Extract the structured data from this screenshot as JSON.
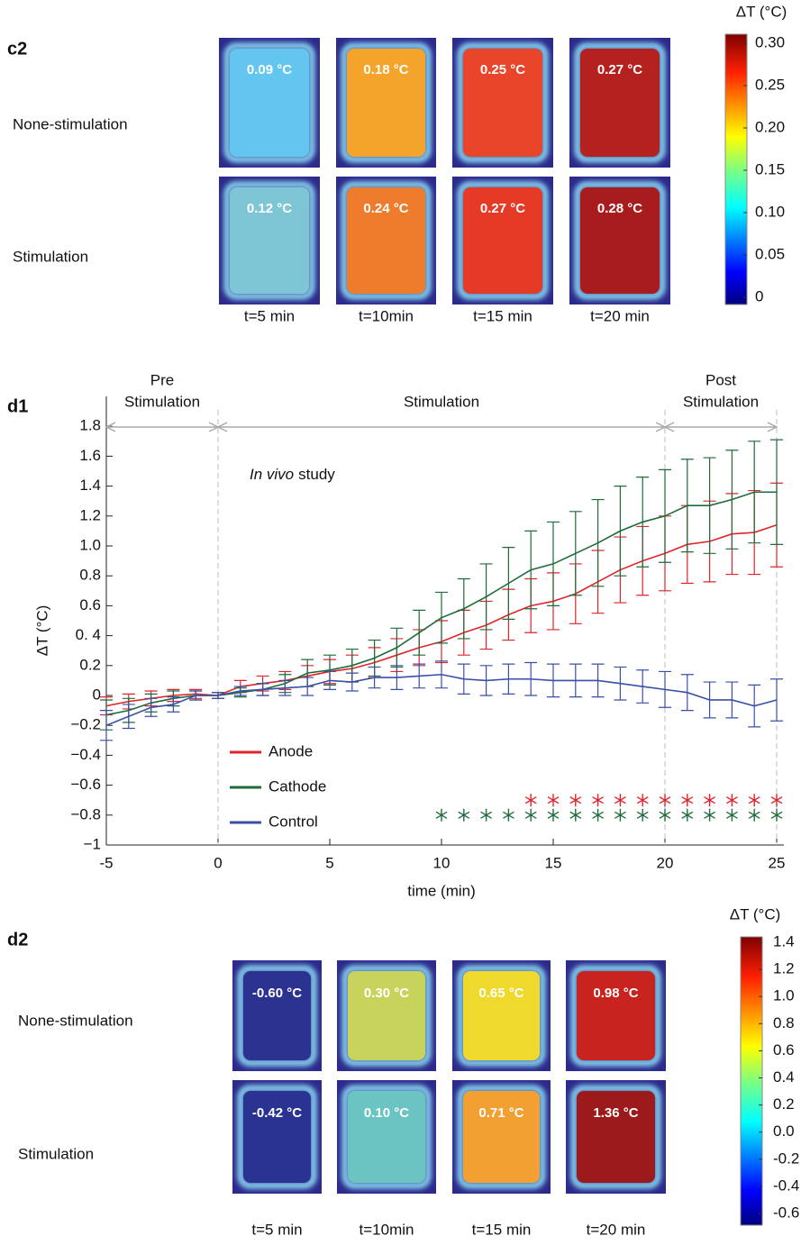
{
  "c2": {
    "panel": "c2",
    "rows": [
      "None-stimulation",
      "Stimulation"
    ],
    "columns": [
      "t=5 min",
      "t=10min",
      "t=15 min",
      "t=20 min"
    ],
    "cells": [
      [
        {
          "label": "0.09 °C",
          "color": "#62c6ee"
        },
        {
          "label": "0.18 °C",
          "color": "#f4a42a"
        },
        {
          "label": "0.25 °C",
          "color": "#e8452b"
        },
        {
          "label": "0.27 °C",
          "color": "#b4211f"
        }
      ],
      [
        {
          "label": "0.12 °C",
          "color": "#7ec6d6"
        },
        {
          "label": "0.24 °C",
          "color": "#ee7c2c"
        },
        {
          "label": "0.27 °C",
          "color": "#e53a26"
        },
        {
          "label": "0.28 °C",
          "color": "#a91c1d"
        }
      ]
    ],
    "colorbar": {
      "title": "ΔT (°C)",
      "ticks": [
        "0.30",
        "0.25",
        "0.20",
        "0.15",
        "0.10",
        "0.05",
        "0"
      ]
    }
  },
  "chart_data": {
    "type": "line",
    "panel": "d1",
    "x_label": "time (min)",
    "y_label": "ΔT (°C)",
    "annotation": [
      "In vivo",
      "study"
    ],
    "phases": [
      {
        "label": [
          "Pre",
          "Stimulation"
        ],
        "range": [
          -5,
          0
        ]
      },
      {
        "label": [
          "Stimulation"
        ],
        "range": [
          0,
          20
        ]
      },
      {
        "label": [
          "Post",
          "Stimulation"
        ],
        "range": [
          20,
          25
        ]
      }
    ],
    "x": [
      -5,
      -4,
      -3,
      -2,
      -1,
      0,
      1,
      2,
      3,
      4,
      5,
      6,
      7,
      8,
      9,
      10,
      11,
      12,
      13,
      14,
      15,
      16,
      17,
      18,
      19,
      20,
      21,
      22,
      23,
      24,
      25
    ],
    "series": [
      {
        "name": "Anode",
        "color": "#e0242b",
        "values": [
          -0.07,
          -0.04,
          -0.02,
          0.0,
          0.01,
          0.0,
          0.06,
          0.08,
          0.1,
          0.13,
          0.16,
          0.18,
          0.22,
          0.27,
          0.32,
          0.36,
          0.42,
          0.47,
          0.54,
          0.6,
          0.63,
          0.68,
          0.76,
          0.84,
          0.9,
          0.95,
          1.01,
          1.03,
          1.08,
          1.09,
          1.14
        ],
        "errors": [
          0.06,
          0.05,
          0.05,
          0.04,
          0.03,
          0.02,
          0.04,
          0.05,
          0.06,
          0.07,
          0.08,
          0.09,
          0.1,
          0.11,
          0.12,
          0.14,
          0.15,
          0.16,
          0.17,
          0.18,
          0.19,
          0.2,
          0.21,
          0.22,
          0.23,
          0.25,
          0.26,
          0.27,
          0.27,
          0.28,
          0.28
        ]
      },
      {
        "name": "Cathode",
        "color": "#1f6b3a",
        "values": [
          -0.13,
          -0.1,
          -0.05,
          -0.02,
          0.0,
          0.0,
          0.02,
          0.04,
          0.08,
          0.15,
          0.17,
          0.2,
          0.25,
          0.32,
          0.42,
          0.52,
          0.58,
          0.66,
          0.75,
          0.84,
          0.88,
          0.95,
          1.02,
          1.1,
          1.16,
          1.2,
          1.27,
          1.27,
          1.31,
          1.36,
          1.36
        ],
        "errors": [
          0.1,
          0.08,
          0.06,
          0.05,
          0.03,
          0.02,
          0.03,
          0.04,
          0.06,
          0.09,
          0.1,
          0.11,
          0.12,
          0.13,
          0.15,
          0.17,
          0.2,
          0.22,
          0.24,
          0.26,
          0.28,
          0.28,
          0.29,
          0.3,
          0.3,
          0.31,
          0.31,
          0.32,
          0.33,
          0.34,
          0.35
        ]
      },
      {
        "name": "Control",
        "color": "#3a4fa8",
        "values": [
          -0.2,
          -0.14,
          -0.08,
          -0.06,
          0.0,
          0.0,
          0.03,
          0.04,
          0.05,
          0.06,
          0.1,
          0.09,
          0.12,
          0.12,
          0.13,
          0.14,
          0.11,
          0.1,
          0.11,
          0.11,
          0.1,
          0.1,
          0.1,
          0.08,
          0.06,
          0.04,
          0.02,
          -0.03,
          -0.03,
          -0.07,
          -0.03
        ],
        "errors": [
          0.1,
          0.08,
          0.06,
          0.05,
          0.03,
          0.02,
          0.03,
          0.04,
          0.05,
          0.06,
          0.06,
          0.06,
          0.07,
          0.08,
          0.08,
          0.09,
          0.1,
          0.1,
          0.1,
          0.11,
          0.11,
          0.11,
          0.11,
          0.11,
          0.11,
          0.12,
          0.12,
          0.12,
          0.12,
          0.14,
          0.14
        ]
      }
    ],
    "significance": [
      {
        "color": "#e0242b",
        "x": [
          14,
          15,
          16,
          17,
          18,
          19,
          20,
          21,
          22,
          23,
          24,
          25
        ],
        "y": -0.7
      },
      {
        "color": "#1f6b3a",
        "x": [
          10,
          11,
          12,
          13,
          14,
          15,
          16,
          17,
          18,
          19,
          20,
          21,
          22,
          23,
          24,
          25
        ],
        "y": -0.8
      }
    ],
    "xlim": [
      -5,
      25
    ],
    "xticks": [
      -5,
      0,
      5,
      10,
      15,
      20,
      25
    ],
    "ylim": [
      -1,
      2.0
    ],
    "yticks": [
      1.8,
      1.6,
      1.4,
      1.2,
      {
        "value": 1,
        "label": "1.0"
      },
      0.8,
      0.6,
      {
        "value": 0.4,
        "label": "0. 4"
      },
      0.2,
      0,
      {
        "value": -0.2,
        "label": "−0.2"
      },
      {
        "value": -0.4,
        "label": "−0.4"
      },
      {
        "value": -0.6,
        "label": "−0.6"
      },
      {
        "value": -0.8,
        "label": "−0.8"
      },
      {
        "value": -1,
        "label": "−1"
      }
    ],
    "legend": "lower left"
  },
  "d2": {
    "panel": "d2",
    "rows": [
      "None-stimulation",
      "Stimulation"
    ],
    "columns": [
      "t=5 min",
      "t=10min",
      "t=15 min",
      "t=20 min"
    ],
    "cells": [
      [
        {
          "label": "-0.60 °C",
          "color": "#2c3290"
        },
        {
          "label": "0.30 °C",
          "color": "#c7d35a"
        },
        {
          "label": "0.65 °C",
          "color": "#efd92c"
        },
        {
          "label": "0.98 °C",
          "color": "#c8241f"
        }
      ],
      [
        {
          "label": "-0.42 °C",
          "color": "#2a3391"
        },
        {
          "label": "0.10 °C",
          "color": "#6bc3c2"
        },
        {
          "label": "0.71 °C",
          "color": "#f2a031"
        },
        {
          "label": "1.36 °C",
          "color": "#9c1a1c"
        }
      ]
    ],
    "colorbar": {
      "title": "ΔT (°C)",
      "ticks": [
        "1.4",
        "1.2",
        "1.0",
        "0.8",
        "0.6",
        "0.4",
        "0.2",
        "0.0",
        "-0.2",
        "-0.4",
        "-0.6"
      ]
    }
  }
}
